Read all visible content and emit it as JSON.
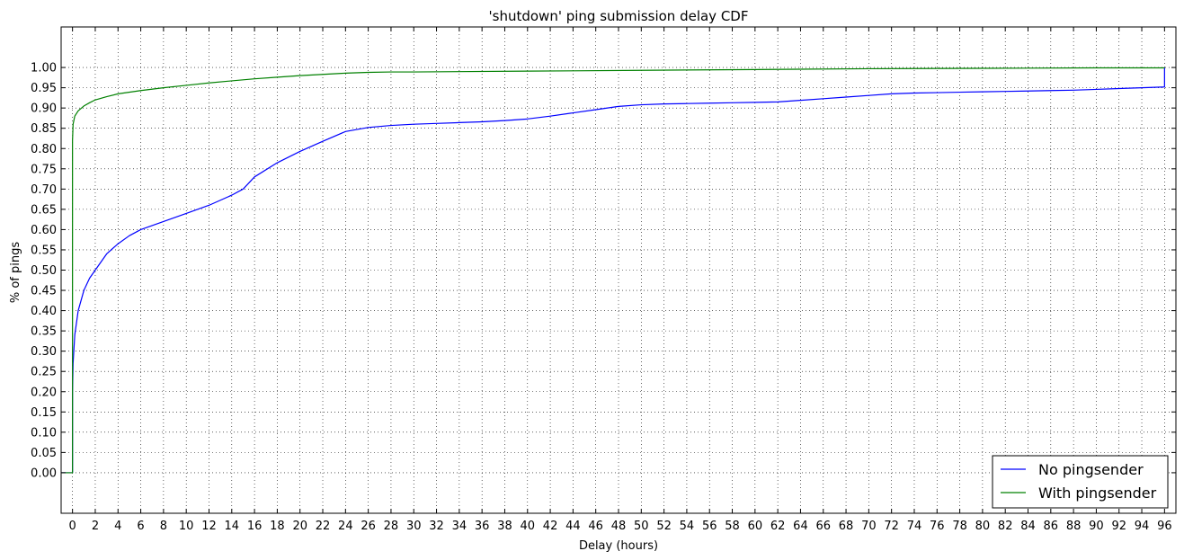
{
  "chart_data": {
    "type": "line",
    "title": "'shutdown' ping submission delay CDF",
    "xlabel": "Delay (hours)",
    "ylabel": "% of pings",
    "xlim": [
      -1,
      97
    ],
    "ylim": [
      -0.1,
      1.1
    ],
    "xticks": [
      0,
      2,
      4,
      6,
      8,
      10,
      12,
      14,
      16,
      18,
      20,
      22,
      24,
      26,
      28,
      30,
      32,
      34,
      36,
      38,
      40,
      42,
      44,
      46,
      48,
      50,
      52,
      54,
      56,
      58,
      60,
      62,
      64,
      66,
      68,
      70,
      72,
      74,
      76,
      78,
      80,
      82,
      84,
      86,
      88,
      90,
      92,
      94,
      96
    ],
    "yticks": [
      "0.00",
      "0.05",
      "0.10",
      "0.15",
      "0.20",
      "0.25",
      "0.30",
      "0.35",
      "0.40",
      "0.45",
      "0.50",
      "0.55",
      "0.60",
      "0.65",
      "0.70",
      "0.75",
      "0.80",
      "0.85",
      "0.90",
      "0.95",
      "1.00"
    ],
    "grid": true,
    "legend_position": "lower-right",
    "series": [
      {
        "name": "No pingsender",
        "color": "#0000ff",
        "x": [
          -1,
          0,
          0,
          0.05,
          0.2,
          0.5,
          1,
          1.5,
          2,
          3,
          4,
          5,
          6,
          8,
          10,
          12,
          14,
          15,
          16,
          18,
          20,
          22,
          24,
          26,
          28,
          30,
          32,
          34,
          36,
          38,
          40,
          42,
          44,
          46,
          48,
          50,
          52,
          54,
          56,
          58,
          60,
          62,
          64,
          66,
          68,
          70,
          72,
          74,
          76,
          78,
          80,
          82,
          84,
          86,
          88,
          90,
          92,
          94,
          96,
          96
        ],
        "y": [
          0,
          0,
          0.2,
          0.27,
          0.34,
          0.4,
          0.45,
          0.48,
          0.5,
          0.54,
          0.565,
          0.585,
          0.6,
          0.62,
          0.64,
          0.66,
          0.685,
          0.7,
          0.73,
          0.765,
          0.793,
          0.818,
          0.842,
          0.852,
          0.857,
          0.86,
          0.862,
          0.864,
          0.866,
          0.869,
          0.873,
          0.88,
          0.888,
          0.896,
          0.904,
          0.908,
          0.91,
          0.911,
          0.912,
          0.913,
          0.914,
          0.915,
          0.919,
          0.923,
          0.927,
          0.931,
          0.935,
          0.937,
          0.938,
          0.939,
          0.94,
          0.941,
          0.942,
          0.943,
          0.944,
          0.946,
          0.948,
          0.95,
          0.952,
          1.0
        ]
      },
      {
        "name": "With pingsender",
        "color": "#008000",
        "x": [
          -1,
          0,
          0,
          0.05,
          0.2,
          0.5,
          1,
          1.5,
          2,
          3,
          4,
          6,
          8,
          10,
          12,
          14,
          16,
          18,
          20,
          22,
          24,
          26,
          28,
          30,
          40,
          50,
          60,
          70,
          80,
          90,
          96
        ],
        "y": [
          0,
          0,
          0.82,
          0.86,
          0.88,
          0.893,
          0.905,
          0.913,
          0.92,
          0.928,
          0.935,
          0.943,
          0.95,
          0.956,
          0.962,
          0.967,
          0.972,
          0.976,
          0.98,
          0.983,
          0.986,
          0.988,
          0.989,
          0.989,
          0.991,
          0.993,
          0.995,
          0.997,
          0.998,
          0.999,
          0.999
        ]
      }
    ]
  }
}
